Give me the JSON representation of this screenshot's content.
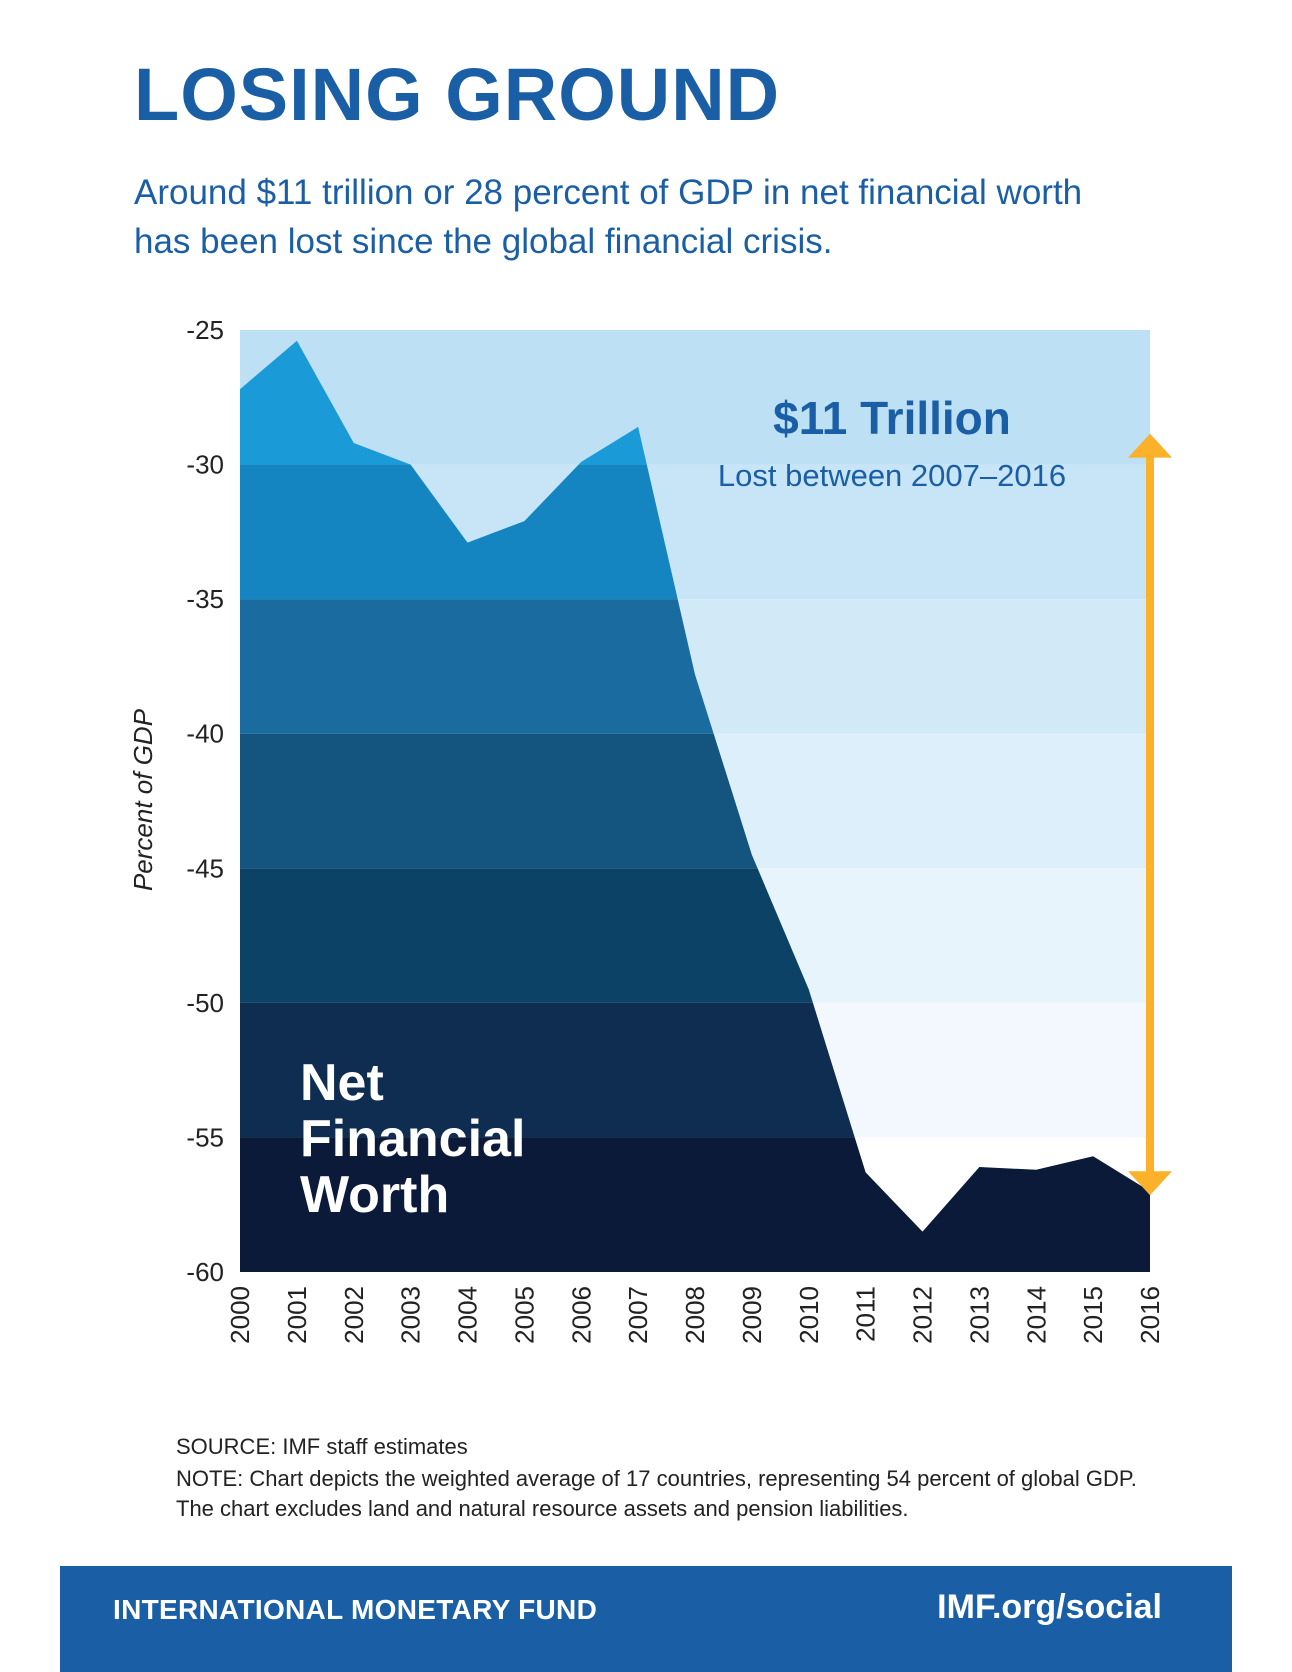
{
  "header": {
    "title": "LOSING GROUND",
    "subtitle": "Around $11 trillion or 28 percent of GDP in net financial worth has been lost since the global financial crisis."
  },
  "chart_data": {
    "type": "area",
    "x": [
      2000,
      2001,
      2002,
      2003,
      2004,
      2005,
      2006,
      2007,
      2008,
      2009,
      2010,
      2011,
      2012,
      2013,
      2014,
      2015,
      2016
    ],
    "values": [
      -27.2,
      -25.4,
      -29.2,
      -30.0,
      -32.9,
      -32.1,
      -29.9,
      -28.6,
      -37.8,
      -44.5,
      -49.5,
      -56.3,
      -58.5,
      -56.1,
      -56.2,
      -55.7,
      -57.0
    ],
    "series_name": "Net Financial Worth",
    "ylabel": "Percent of GDP",
    "xlabel": "",
    "ylim": [
      -60,
      -25
    ],
    "yticks": [
      -25,
      -30,
      -35,
      -40,
      -45,
      -50,
      -55,
      -60
    ],
    "area_label": [
      "Net",
      "Financial",
      "Worth"
    ],
    "annotation": {
      "headline": "$11 Trillion",
      "subtext": "Lost between 2007–2016",
      "arrow_from": -29.0,
      "arrow_to": -57.0
    },
    "colors": {
      "area_bands": [
        "#1b9ad8",
        "#1585c2",
        "#1a6ca0",
        "#13557f",
        "#0c4266",
        "#0f2d50",
        "#0a1a38"
      ],
      "bg_bands": [
        "#bde0f5",
        "#c7e5f7",
        "#d2eaf8",
        "#ddeffa",
        "#e8f4fc",
        "#f2f8fd",
        "#ffffff"
      ],
      "arrow": "#fbb12a",
      "annotation_text": "#1a5fa6"
    }
  },
  "notes": {
    "source": "SOURCE: IMF staff estimates",
    "note": "NOTE: Chart depicts the weighted average of 17 countries, representing 54 percent of global GDP. The chart excludes land and natural resource assets and pension liabilities."
  },
  "footer": {
    "organization": "INTERNATIONAL MONETARY FUND",
    "link": "IMF.org/social"
  }
}
